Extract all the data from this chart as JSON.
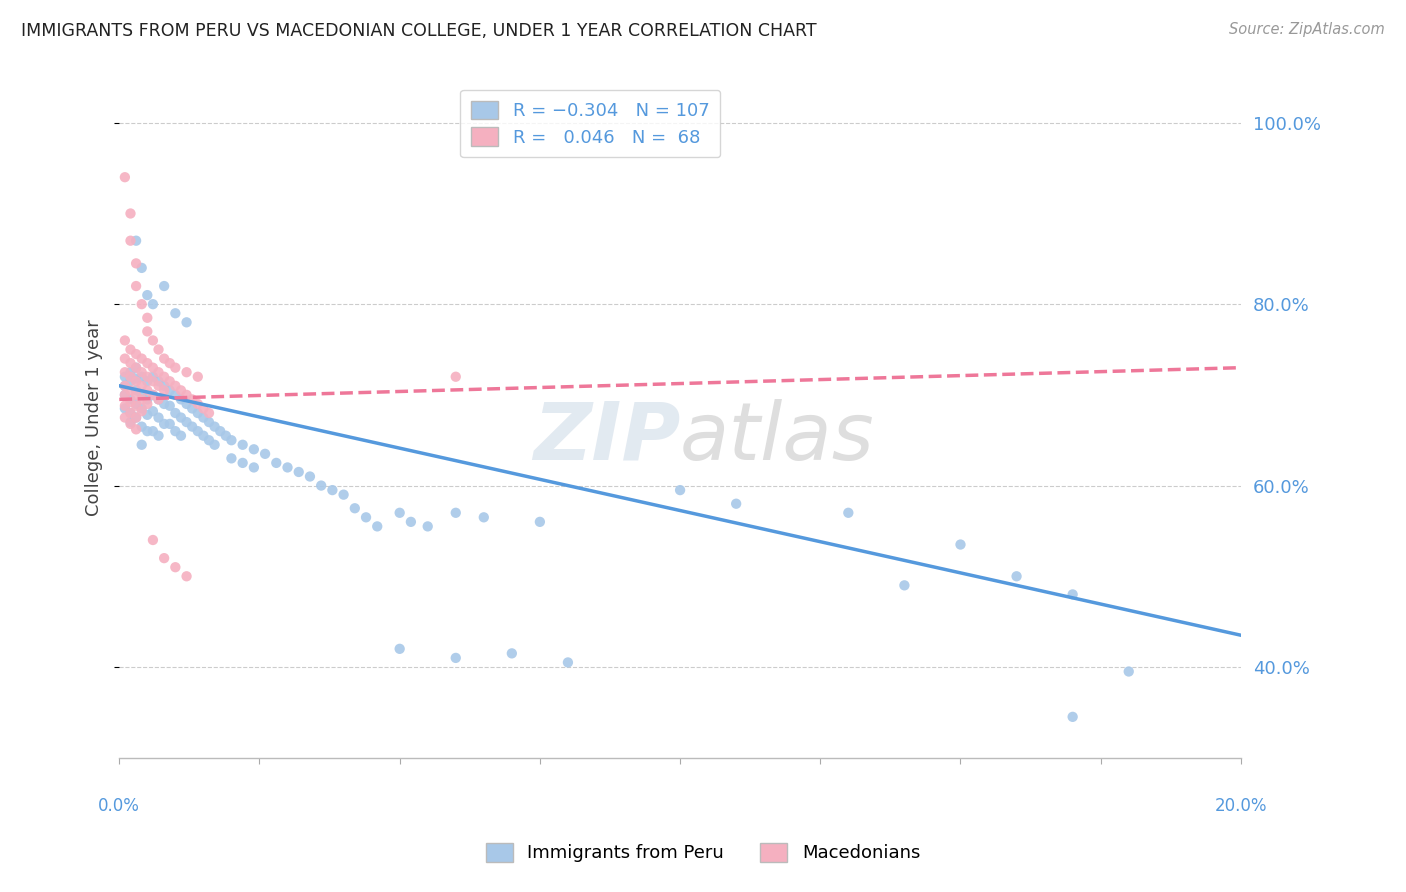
{
  "title": "IMMIGRANTS FROM PERU VS MACEDONIAN COLLEGE, UNDER 1 YEAR CORRELATION CHART",
  "source": "Source: ZipAtlas.com",
  "ylabel": "College, Under 1 year",
  "right_yticks": [
    "40.0%",
    "60.0%",
    "80.0%",
    "100.0%"
  ],
  "right_ytick_vals": [
    0.4,
    0.6,
    0.8,
    1.0
  ],
  "legend_blue_label": "Immigrants from Peru",
  "legend_pink_label": "Macedonians",
  "blue_dot_color": "#a8c8e8",
  "pink_dot_color": "#f5b0c0",
  "blue_line_color": "#5599dd",
  "pink_line_color": "#ee7799",
  "blue_scatter": [
    [
      0.001,
      0.72
    ],
    [
      0.001,
      0.7
    ],
    [
      0.001,
      0.685
    ],
    [
      0.001,
      0.71
    ],
    [
      0.002,
      0.725
    ],
    [
      0.002,
      0.715
    ],
    [
      0.002,
      0.695
    ],
    [
      0.002,
      0.68
    ],
    [
      0.002,
      0.67
    ],
    [
      0.003,
      0.73
    ],
    [
      0.003,
      0.718
    ],
    [
      0.003,
      0.705
    ],
    [
      0.003,
      0.69
    ],
    [
      0.003,
      0.675
    ],
    [
      0.004,
      0.72
    ],
    [
      0.004,
      0.7
    ],
    [
      0.004,
      0.685
    ],
    [
      0.004,
      0.665
    ],
    [
      0.004,
      0.645
    ],
    [
      0.005,
      0.715
    ],
    [
      0.005,
      0.695
    ],
    [
      0.005,
      0.678
    ],
    [
      0.005,
      0.66
    ],
    [
      0.006,
      0.72
    ],
    [
      0.006,
      0.7
    ],
    [
      0.006,
      0.682
    ],
    [
      0.006,
      0.66
    ],
    [
      0.007,
      0.715
    ],
    [
      0.007,
      0.695
    ],
    [
      0.007,
      0.675
    ],
    [
      0.007,
      0.655
    ],
    [
      0.008,
      0.71
    ],
    [
      0.008,
      0.69
    ],
    [
      0.008,
      0.668
    ],
    [
      0.009,
      0.705
    ],
    [
      0.009,
      0.688
    ],
    [
      0.009,
      0.668
    ],
    [
      0.01,
      0.7
    ],
    [
      0.01,
      0.68
    ],
    [
      0.01,
      0.66
    ],
    [
      0.011,
      0.695
    ],
    [
      0.011,
      0.675
    ],
    [
      0.011,
      0.655
    ],
    [
      0.012,
      0.69
    ],
    [
      0.012,
      0.67
    ],
    [
      0.013,
      0.685
    ],
    [
      0.013,
      0.665
    ],
    [
      0.014,
      0.68
    ],
    [
      0.014,
      0.66
    ],
    [
      0.015,
      0.675
    ],
    [
      0.015,
      0.655
    ],
    [
      0.016,
      0.67
    ],
    [
      0.016,
      0.65
    ],
    [
      0.017,
      0.665
    ],
    [
      0.017,
      0.645
    ],
    [
      0.018,
      0.66
    ],
    [
      0.019,
      0.655
    ],
    [
      0.02,
      0.65
    ],
    [
      0.02,
      0.63
    ],
    [
      0.022,
      0.645
    ],
    [
      0.022,
      0.625
    ],
    [
      0.024,
      0.64
    ],
    [
      0.024,
      0.62
    ],
    [
      0.026,
      0.635
    ],
    [
      0.028,
      0.625
    ],
    [
      0.03,
      0.62
    ],
    [
      0.032,
      0.615
    ],
    [
      0.034,
      0.61
    ],
    [
      0.036,
      0.6
    ],
    [
      0.038,
      0.595
    ],
    [
      0.04,
      0.59
    ],
    [
      0.042,
      0.575
    ],
    [
      0.044,
      0.565
    ],
    [
      0.046,
      0.555
    ],
    [
      0.05,
      0.57
    ],
    [
      0.052,
      0.56
    ],
    [
      0.055,
      0.555
    ],
    [
      0.06,
      0.57
    ],
    [
      0.065,
      0.565
    ],
    [
      0.075,
      0.56
    ],
    [
      0.003,
      0.87
    ],
    [
      0.004,
      0.84
    ],
    [
      0.005,
      0.81
    ],
    [
      0.006,
      0.8
    ],
    [
      0.008,
      0.82
    ],
    [
      0.01,
      0.79
    ],
    [
      0.012,
      0.78
    ],
    [
      0.1,
      0.595
    ],
    [
      0.11,
      0.58
    ],
    [
      0.13,
      0.57
    ],
    [
      0.15,
      0.535
    ],
    [
      0.16,
      0.5
    ],
    [
      0.14,
      0.49
    ],
    [
      0.17,
      0.48
    ],
    [
      0.07,
      0.415
    ],
    [
      0.08,
      0.405
    ],
    [
      0.06,
      0.41
    ],
    [
      0.05,
      0.42
    ],
    [
      0.17,
      0.345
    ],
    [
      0.18,
      0.395
    ]
  ],
  "pink_scatter": [
    [
      0.001,
      0.76
    ],
    [
      0.001,
      0.74
    ],
    [
      0.001,
      0.725
    ],
    [
      0.001,
      0.71
    ],
    [
      0.001,
      0.7
    ],
    [
      0.001,
      0.688
    ],
    [
      0.001,
      0.675
    ],
    [
      0.002,
      0.75
    ],
    [
      0.002,
      0.735
    ],
    [
      0.002,
      0.72
    ],
    [
      0.002,
      0.705
    ],
    [
      0.002,
      0.692
    ],
    [
      0.002,
      0.68
    ],
    [
      0.002,
      0.668
    ],
    [
      0.003,
      0.745
    ],
    [
      0.003,
      0.73
    ],
    [
      0.003,
      0.715
    ],
    [
      0.003,
      0.7
    ],
    [
      0.003,
      0.688
    ],
    [
      0.003,
      0.675
    ],
    [
      0.003,
      0.662
    ],
    [
      0.004,
      0.74
    ],
    [
      0.004,
      0.725
    ],
    [
      0.004,
      0.71
    ],
    [
      0.004,
      0.695
    ],
    [
      0.004,
      0.682
    ],
    [
      0.005,
      0.735
    ],
    [
      0.005,
      0.72
    ],
    [
      0.005,
      0.705
    ],
    [
      0.005,
      0.69
    ],
    [
      0.006,
      0.73
    ],
    [
      0.006,
      0.715
    ],
    [
      0.006,
      0.7
    ],
    [
      0.007,
      0.725
    ],
    [
      0.007,
      0.71
    ],
    [
      0.007,
      0.695
    ],
    [
      0.008,
      0.72
    ],
    [
      0.008,
      0.705
    ],
    [
      0.009,
      0.715
    ],
    [
      0.01,
      0.71
    ],
    [
      0.011,
      0.705
    ],
    [
      0.012,
      0.7
    ],
    [
      0.013,
      0.695
    ],
    [
      0.014,
      0.69
    ],
    [
      0.015,
      0.685
    ],
    [
      0.016,
      0.68
    ],
    [
      0.001,
      0.94
    ],
    [
      0.002,
      0.9
    ],
    [
      0.002,
      0.87
    ],
    [
      0.003,
      0.845
    ],
    [
      0.003,
      0.82
    ],
    [
      0.004,
      0.8
    ],
    [
      0.005,
      0.785
    ],
    [
      0.005,
      0.77
    ],
    [
      0.006,
      0.76
    ],
    [
      0.007,
      0.75
    ],
    [
      0.008,
      0.74
    ],
    [
      0.009,
      0.735
    ],
    [
      0.01,
      0.73
    ],
    [
      0.012,
      0.725
    ],
    [
      0.014,
      0.72
    ],
    [
      0.006,
      0.54
    ],
    [
      0.008,
      0.52
    ],
    [
      0.01,
      0.51
    ],
    [
      0.012,
      0.5
    ],
    [
      0.06,
      0.72
    ]
  ],
  "xlim": [
    0.0,
    0.2
  ],
  "ylim": [
    0.3,
    1.05
  ],
  "blue_trend_x": [
    0.0,
    0.2
  ],
  "blue_trend_y": [
    0.71,
    0.435
  ],
  "pink_trend_x": [
    0.0,
    0.2
  ],
  "pink_trend_y": [
    0.695,
    0.73
  ]
}
